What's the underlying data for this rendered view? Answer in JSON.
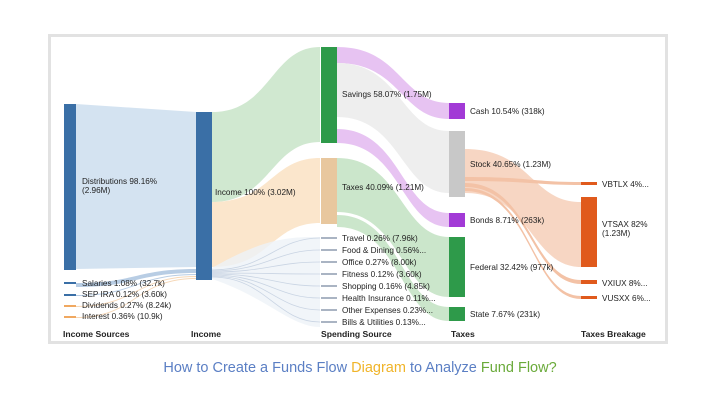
{
  "columns": [
    "Income Sources",
    "Income",
    "Spending Source",
    "Taxes",
    "Taxes Breakage"
  ],
  "labels": {
    "distributions_1": "Distributions 98.16%",
    "distributions_2": "(2.96M)",
    "salaries": "Salaries 1.08% (32.7k)",
    "sep_ira": "SEP IRA 0.12% (3.60k)",
    "dividends": "Dividends 0.27% (8.24k)",
    "interest": "Interest 0.36% (10.9k)",
    "income": "Income 100% (3.02M)",
    "savings": "Savings 58.07% (1.75M)",
    "taxes": "Taxes 40.09% (1.21M)",
    "travel": "Travel 0.26% (7.96k)",
    "food": "Food & Dining 0.56%...",
    "office": "Office 0.27% (8.00k)",
    "fitness": "Fitness 0.12% (3.60k)",
    "shopping": "Shopping 0.16% (4.85k)",
    "health": "Health Insurance 0.11%...",
    "other": "Other Expenses 0.23%...",
    "bills": "Bills & Utilities 0.13%...",
    "cash": "Cash 10.54% (318k)",
    "stock": "Stock 40.65% (1.23M)",
    "bonds": "Bonds 8.71% (263k)",
    "federal": "Federal 32.42% (977k)",
    "state": "State 7.67% (231k)",
    "vbtlx": "VBTLX 4%...",
    "vtsax_1": "VTSAX 82%",
    "vtsax_2": "(1.23M)",
    "vxiux": "VXIUX 8%...",
    "vusxx": "VUSXX 6%..."
  },
  "caption": [
    {
      "text": "How to Create a Funds Flow ",
      "color": "#5b7fc4"
    },
    {
      "text": "Diagram",
      "color": "#f0b429"
    },
    {
      "text": " to Analyze ",
      "color": "#5b7fc4"
    },
    {
      "text": "Fund Flow?",
      "color": "#6aaa3a"
    }
  ]
}
